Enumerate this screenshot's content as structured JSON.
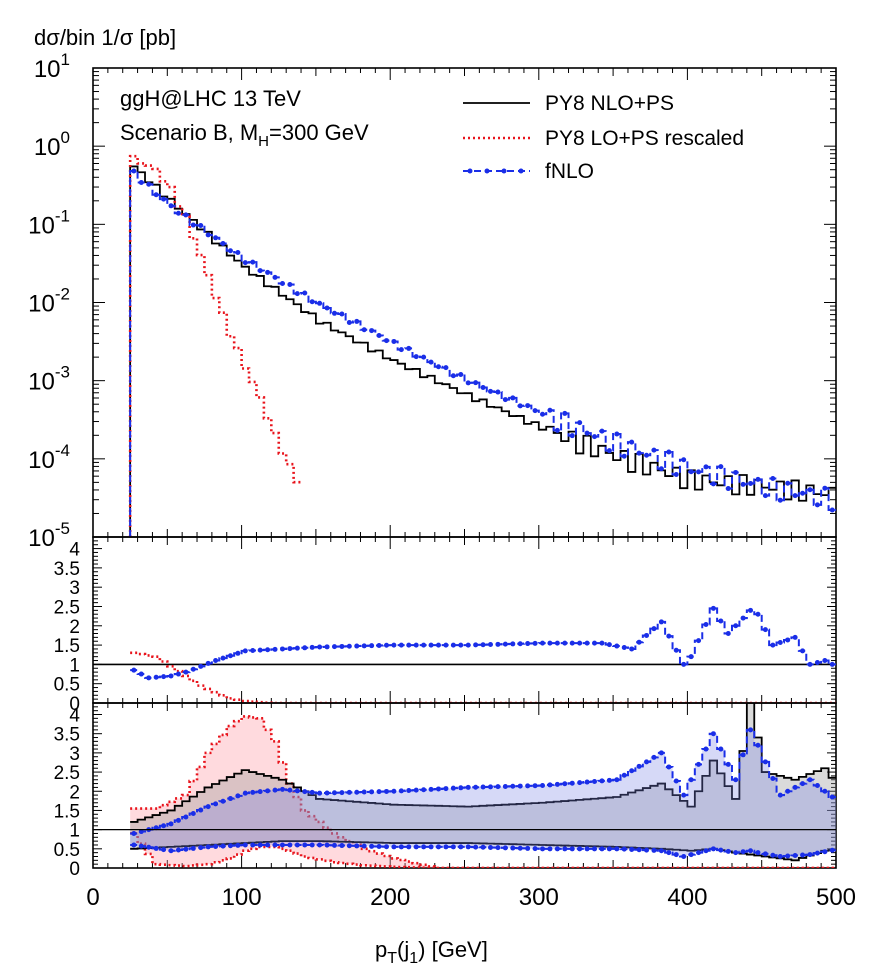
{
  "chart_data": {
    "type": "line",
    "ylabel": "dσ/bin 1/σ  [pb]",
    "xlabel": "p_T(j_1) [GeV]",
    "xlim": [
      0,
      500
    ],
    "x_ticks": [
      "0",
      "100",
      "200",
      "300",
      "400",
      "500"
    ],
    "annotations": {
      "process": "ggH@LHC 13 TeV",
      "scenario_prefix": "Scenario B, M",
      "scenario_sub": "H",
      "scenario_suffix": "=300 GeV"
    },
    "legend": {
      "position": "top-right",
      "entries": [
        {
          "label": "PY8 NLO+PS",
          "color": "#000000",
          "style": "solid"
        },
        {
          "label": "PY8 LO+PS rescaled",
          "color": "#e8141c",
          "style": "dotted"
        },
        {
          "label": "fNLO",
          "color": "#1a2ee8",
          "style": "dashed-dots"
        }
      ]
    },
    "panels": [
      {
        "name": "main",
        "yscale": "log",
        "ylim": [
          1e-05,
          10
        ],
        "y_ticks": [
          {
            "mant": "10",
            "exp": "1"
          },
          {
            "mant": "10",
            "exp": "0"
          },
          {
            "mant": "10",
            "exp": "-1"
          },
          {
            "mant": "10",
            "exp": "-2"
          },
          {
            "mant": "10",
            "exp": "-3"
          },
          {
            "mant": "10",
            "exp": "-4"
          },
          {
            "mant": "10",
            "exp": "-5"
          }
        ],
        "series": [
          {
            "name": "PY8 NLO+PS",
            "color": "#000000",
            "style": "step",
            "x": [
              25,
              50,
              100,
              150,
              200,
              250,
              300,
              350,
              400,
              450,
              500
            ],
            "y": [
              0.55,
              0.2,
              0.028,
              0.0058,
              0.0018,
              0.00065,
              0.00025,
              0.00011,
              5.5e-05,
              4.5e-05,
              3.5e-05
            ]
          },
          {
            "name": "PY8 LO+PS rescaled",
            "color": "#e8141c",
            "style": "dotted-step",
            "x": [
              25,
              40,
              50,
              60,
              70,
              80,
              90,
              100,
              110,
              120,
              130,
              140
            ],
            "y": [
              0.7,
              0.5,
              0.28,
              0.12,
              0.04,
              0.012,
              0.004,
              0.0015,
              0.0006,
              0.0002,
              8e-05,
              3.5e-05
            ]
          },
          {
            "name": "fNLO",
            "color": "#1a2ee8",
            "style": "dashed-dots",
            "x": [
              25,
              50,
              100,
              150,
              200,
              250,
              300,
              350,
              400,
              450,
              500
            ],
            "y": [
              0.45,
              0.17,
              0.035,
              0.0095,
              0.003,
              0.001,
              0.00038,
              0.00016,
              7.5e-05,
              4.5e-05,
              3e-05
            ]
          }
        ]
      },
      {
        "name": "ratio",
        "ylim": [
          0,
          4.3
        ],
        "y_ticks": [
          "4",
          "3.5",
          "3",
          "2.5",
          "2",
          "1.5",
          "1",
          "0.5",
          "0"
        ],
        "series": [
          {
            "name": "PY8 NLO+PS",
            "color": "#000000",
            "style": "line",
            "x": [
              25,
              500
            ],
            "y": [
              1,
              1
            ]
          },
          {
            "name": "PY8 LO+PS rescaled",
            "color": "#e8141c",
            "style": "dotted-step",
            "x": [
              25,
              40,
              50,
              60,
              70,
              80,
              90,
              100,
              110,
              120,
              500
            ],
            "y": [
              1.3,
              1.2,
              0.95,
              0.7,
              0.45,
              0.28,
              0.12,
              0.05,
              0.02,
              0.0,
              0.0
            ]
          },
          {
            "name": "fNLO",
            "color": "#1a2ee8",
            "style": "dashed-dots",
            "x": [
              25,
              35,
              50,
              60,
              80,
              100,
              150,
              200,
              250,
              300,
              340,
              360,
              380,
              395,
              400,
              415,
              425,
              430,
              440,
              445,
              455,
              470,
              480,
              490,
              500
            ],
            "y": [
              0.85,
              0.65,
              0.7,
              0.8,
              1.1,
              1.35,
              1.45,
              1.5,
              1.5,
              1.55,
              1.55,
              1.4,
              2.1,
              1.0,
              1.2,
              2.45,
              1.8,
              2.0,
              2.4,
              2.3,
              1.5,
              1.7,
              1.0,
              1.1,
              0.9
            ]
          }
        ]
      },
      {
        "name": "bands",
        "ylim": [
          0,
          4.3
        ],
        "y_ticks": [
          "4",
          "3.5",
          "3",
          "2.5",
          "2",
          "1.5",
          "1",
          "0.5",
          "0"
        ],
        "series": [
          {
            "name": "PY8 LO+PS rescaled",
            "color": "#e8141c",
            "style": "dotted-step",
            "fill": "rgba(255,150,160,0.35)",
            "x": [
              25,
              40,
              60,
              75,
              90,
              100,
              110,
              120,
              130,
              140,
              160,
              180,
              200,
              230,
              500
            ],
            "y_low": [
              0.9,
              0.1,
              0.05,
              0.1,
              0.25,
              0.45,
              0.55,
              0.55,
              0.45,
              0.3,
              0.15,
              0.07,
              0.03,
              0.0,
              0.0
            ],
            "y_high": [
              1.55,
              1.55,
              1.9,
              3.0,
              3.7,
              3.95,
              3.9,
              3.3,
              2.2,
              1.5,
              0.9,
              0.5,
              0.25,
              0.0,
              0.0
            ]
          },
          {
            "name": "PY8 NLO+PS",
            "color": "#000000",
            "style": "step",
            "fill": "rgba(150,150,150,0.35)",
            "x": [
              25,
              50,
              75,
              100,
              125,
              150,
              200,
              250,
              300,
              350,
              380,
              400,
              415,
              430,
              440,
              450,
              470,
              490,
              500
            ],
            "y_low": [
              0.5,
              0.55,
              0.6,
              0.65,
              0.7,
              0.7,
              0.65,
              0.65,
              0.6,
              0.55,
              0.5,
              0.45,
              0.5,
              0.4,
              0.35,
              0.3,
              0.2,
              0.45,
              0.5
            ],
            "y_high": [
              1.2,
              1.5,
              2.1,
              2.55,
              2.3,
              1.8,
              1.65,
              1.6,
              1.7,
              1.85,
              2.2,
              1.6,
              2.8,
              1.8,
              4.3,
              2.5,
              2.3,
              2.6,
              2.1
            ]
          },
          {
            "name": "fNLO",
            "color": "#1a2ee8",
            "style": "dashed-dots",
            "fill": "rgba(120,130,230,0.3)",
            "x": [
              25,
              50,
              75,
              100,
              125,
              150,
              200,
              250,
              300,
              350,
              380,
              395,
              415,
              430,
              440,
              445,
              460,
              480,
              500
            ],
            "y_low": [
              0.6,
              0.45,
              0.55,
              0.6,
              0.6,
              0.6,
              0.55,
              0.55,
              0.5,
              0.5,
              0.45,
              0.3,
              0.5,
              0.4,
              0.45,
              0.4,
              0.3,
              0.35,
              0.5
            ],
            "y_high": [
              0.9,
              1.15,
              1.6,
              1.95,
              2.05,
              1.95,
              2.0,
              2.1,
              2.15,
              2.3,
              3.0,
              1.9,
              3.5,
              2.3,
              3.6,
              3.2,
              1.9,
              2.3,
              1.7
            ]
          }
        ]
      }
    ]
  }
}
